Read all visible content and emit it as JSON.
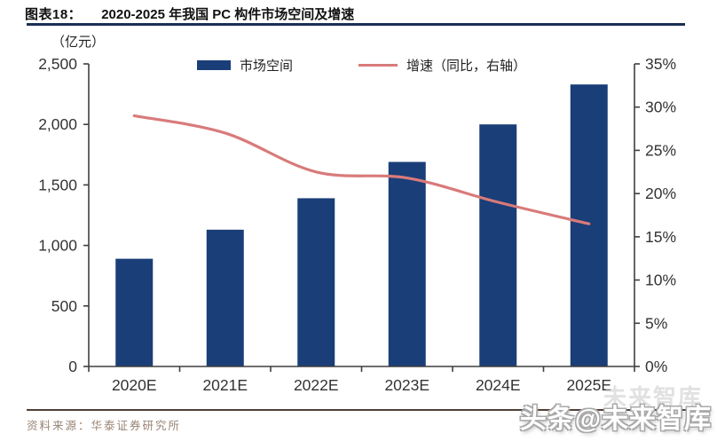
{
  "figure": {
    "caption_label": "图表18：",
    "caption_title": "2020-2025 年我国 PC 构件市场空间及增速",
    "unit_label": "（亿元）",
    "source": "资料来源：华泰证券研究所",
    "watermark": "头条@未来智库",
    "watermark_echo": "未来智库"
  },
  "colors": {
    "bar": "#1a3e78",
    "line": "#d97a7a",
    "axis": "#3f3f3f",
    "tick_text": "#333333",
    "title_rule": "#1b2f55",
    "source_rule": "#4e4038"
  },
  "chart_data": {
    "type": "bar",
    "subtype": "bar-plus-line-dual-axis",
    "title": "2020-2025 年我国 PC 构件市场空间及增速",
    "xlabel": "",
    "ylabel_left": "（亿元）",
    "categories": [
      "2020E",
      "2021E",
      "2022E",
      "2023E",
      "2024E",
      "2025E"
    ],
    "series": [
      {
        "name": "市场空间",
        "type": "bar",
        "axis": "left",
        "values": [
          890,
          1130,
          1390,
          1690,
          2000,
          2330
        ]
      },
      {
        "name": "增速（同比，右轴）",
        "type": "line",
        "axis": "right",
        "values": [
          29,
          27,
          22.5,
          21.8,
          19,
          16.5
        ]
      }
    ],
    "left_axis": {
      "min": 0,
      "max": 2500,
      "step": 500,
      "tick_labels": [
        "0",
        "500",
        "1,000",
        "1,500",
        "2,000",
        "2,500"
      ]
    },
    "right_axis": {
      "min": 0,
      "max": 35,
      "step": 5,
      "tick_labels": [
        "0%",
        "5%",
        "10%",
        "15%",
        "20%",
        "25%",
        "30%",
        "35%"
      ]
    },
    "legend_position": "top-center",
    "grid": false
  }
}
